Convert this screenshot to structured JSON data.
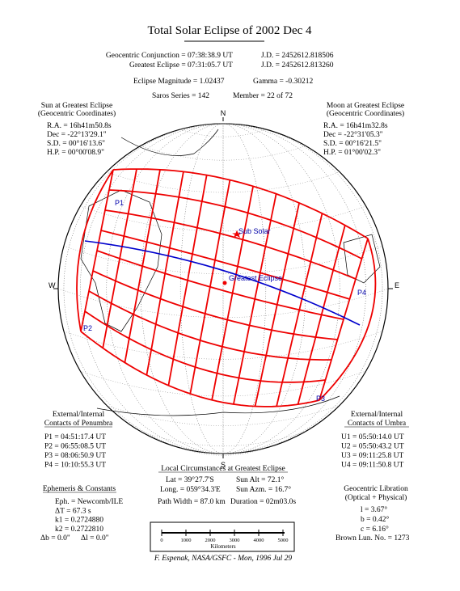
{
  "header": {
    "title": "Total Solar Eclipse of 2002 Dec 4",
    "conjunction": "Geocentric Conjunction = 07:38:38.9 UT",
    "conjunction_jd": "J.D. = 2452612.818506",
    "greatest": "Greatest Eclipse = 07:31:05.7 UT",
    "greatest_jd": "J.D. = 2452612.813260",
    "magnitude": "Eclipse Magnitude = 1.02437",
    "gamma": "Gamma = -0.30212",
    "saros": "Saros Series = 142",
    "member": "Member = 22 of 72"
  },
  "sun": {
    "title": "Sun at Greatest Eclipse",
    "subtitle": "(Geocentric Coordinates)",
    "lines": [
      "R.A. = 16h41m50.8s",
      "Dec = -22°13'29.1\"",
      "S.D. = 00°16'13.6\"",
      "H.P. = 00°00'08.9\""
    ]
  },
  "moon": {
    "title": "Moon at Greatest Eclipse",
    "subtitle": "(Geocentric Coordinates)",
    "lines": [
      "R.A. = 16h41m32.8s",
      "Dec = -22°31'05.3\"",
      "S.D. = 00°16'21.5\"",
      "H.P. = 01°00'02.3\""
    ]
  },
  "map": {
    "north": "N",
    "south": "S",
    "east": "E",
    "west": "W",
    "p1": "P1",
    "p2": "P2",
    "p3": "P3",
    "p4": "P4",
    "sub_solar": "Sub Solar",
    "greatest": "Greatest Eclipse"
  },
  "penumbra": {
    "title": "External/Internal",
    "subtitle": "Contacts of Penumbra",
    "lines": [
      "P1 = 04:51:17.4 UT",
      "P2 = 06:55:08.5 UT",
      "P3 = 08:06:50.9 UT",
      "P4 = 10:10:55.3 UT"
    ]
  },
  "umbra": {
    "title": "External/Internal",
    "subtitle": "Contacts of Umbra",
    "lines": [
      "U1 = 05:50:14.0 UT",
      "U2 = 05:50:43.2 UT",
      "U3 = 09:11:25.8 UT",
      "U4 = 09:11:50.8 UT"
    ]
  },
  "local": {
    "title": "Local Circumstances at Greatest Eclipse",
    "lat": "Lat = 39°27.7'S",
    "sun_alt": "Sun Alt = 72.1°",
    "long": "Long. = 059°34.3'E",
    "sun_azm": "Sun Azm. = 16.7°",
    "path_width": "Path Width = 87.0 km",
    "duration": "Duration = 02m03.0s"
  },
  "ephemeris": {
    "title": "Ephemeris & Constants",
    "lines": [
      "Eph. = Newcomb/ILE",
      "ΔT = 67.3 s",
      "k1 = 0.2724880",
      "k2 = 0.2722810"
    ],
    "db": "Δb = 0.0\"",
    "dl": "Δl = 0.0\""
  },
  "libration": {
    "title": "Geocentric Libration",
    "subtitle": "(Optical + Physical)",
    "lines": [
      "l = 3.67°",
      "b = 0.42°",
      "c = 6.16°"
    ],
    "brown": "Brown Lun. No. = 1273"
  },
  "scale": {
    "ticks": [
      "0",
      "1000",
      "2000",
      "3000",
      "4000",
      "5000"
    ],
    "unit": "Kilometers"
  },
  "footer": "F. Espenak, NASA/GSFC - Mon, 1996 Jul 29"
}
